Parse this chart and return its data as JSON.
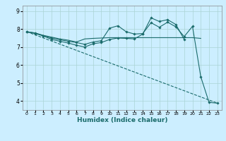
{
  "xlabel": "Humidex (Indice chaleur)",
  "bg_color": "#cceeff",
  "line_color": "#1a6b6b",
  "grid_color": "#aad4d4",
  "xlim": [
    -0.5,
    23.5
  ],
  "ylim": [
    3.5,
    9.3
  ],
  "yticks": [
    4,
    5,
    6,
    7,
    8,
    9
  ],
  "xticks": [
    0,
    1,
    2,
    3,
    4,
    5,
    6,
    7,
    8,
    9,
    10,
    11,
    12,
    13,
    14,
    15,
    16,
    17,
    18,
    19,
    20,
    21,
    22,
    23
  ],
  "series": [
    {
      "x": [
        0,
        1,
        2,
        3,
        4,
        5,
        6,
        7,
        8,
        9,
        10,
        11,
        12,
        13,
        14,
        15,
        16,
        17,
        18,
        19,
        20,
        21
      ],
      "y": [
        7.85,
        7.78,
        7.65,
        7.55,
        7.45,
        7.38,
        7.28,
        7.45,
        7.48,
        7.5,
        7.52,
        7.52,
        7.52,
        7.52,
        7.52,
        7.52,
        7.52,
        7.52,
        7.52,
        7.52,
        7.52,
        7.48
      ],
      "marker": false,
      "dashed": false
    },
    {
      "x": [
        0,
        1,
        2,
        3,
        4,
        5,
        6,
        7,
        8,
        9,
        10,
        11,
        12,
        13,
        14,
        15,
        16,
        17,
        18,
        19,
        20,
        21,
        22,
        23
      ],
      "y": [
        7.85,
        7.75,
        7.62,
        7.5,
        7.4,
        7.32,
        7.25,
        7.15,
        7.28,
        7.35,
        8.05,
        8.18,
        7.85,
        7.72,
        7.75,
        8.35,
        8.1,
        8.38,
        8.12,
        7.58,
        8.15,
        5.35,
        3.92,
        3.88
      ],
      "marker": true,
      "dashed": false
    },
    {
      "x": [
        0,
        1,
        2,
        3,
        4,
        5,
        6,
        7,
        8,
        9,
        10,
        11,
        12,
        13,
        14,
        15,
        16,
        17,
        18,
        19,
        20,
        21,
        22,
        23
      ],
      "y": [
        7.85,
        7.78,
        7.62,
        7.42,
        7.32,
        7.22,
        7.1,
        7.0,
        7.18,
        7.25,
        7.42,
        7.5,
        7.48,
        7.45,
        7.72,
        8.62,
        8.42,
        8.52,
        8.25,
        7.42,
        null,
        null,
        null,
        null
      ],
      "marker": true,
      "dashed": false
    }
  ],
  "diagonal": {
    "x": [
      0,
      23
    ],
    "y": [
      7.85,
      3.88
    ]
  }
}
